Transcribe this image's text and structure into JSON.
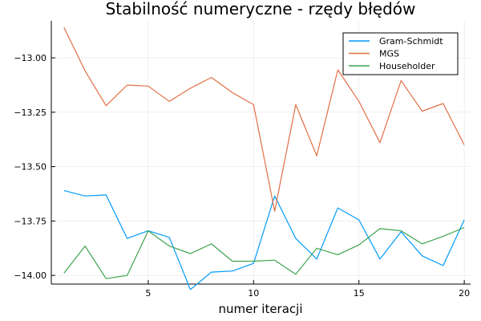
{
  "chart_data": {
    "type": "line",
    "title": "Stabilność numeryczne - rzędy błędów",
    "xlabel": "numer iteracji",
    "ylabel": "",
    "xlim": [
      0.4,
      20.3
    ],
    "ylim": [
      -14.04,
      -12.83
    ],
    "xticks": [
      5,
      10,
      15,
      20
    ],
    "xtick_labels": [
      "5",
      "10",
      "15",
      "20"
    ],
    "yticks": [
      -14.0,
      -13.75,
      -13.5,
      -13.25,
      -13.0
    ],
    "ytick_labels": [
      "−14.00",
      "−13.75",
      "−13.50",
      "−13.25",
      "−13.00"
    ],
    "grid": true,
    "legend_position": "top-right",
    "x": [
      1,
      2,
      3,
      4,
      5,
      6,
      7,
      8,
      9,
      10,
      11,
      12,
      13,
      14,
      15,
      16,
      17,
      18,
      19,
      20
    ],
    "series": [
      {
        "name": "Gram-Schmidt",
        "color": "#009af9",
        "values": [
          -13.61,
          -13.635,
          -13.63,
          -13.83,
          -13.795,
          -13.825,
          -14.065,
          -13.985,
          -13.98,
          -13.945,
          -13.635,
          -13.83,
          -13.925,
          -13.69,
          -13.745,
          -13.925,
          -13.8,
          -13.91,
          -13.955,
          -13.745
        ]
      },
      {
        "name": "MGS",
        "color": "#e26f46",
        "values": [
          -12.86,
          -13.06,
          -13.22,
          -13.125,
          -13.13,
          -13.2,
          -13.14,
          -13.09,
          -13.16,
          -13.215,
          -13.705,
          -13.215,
          -13.45,
          -13.055,
          -13.2,
          -13.39,
          -13.105,
          -13.245,
          -13.21,
          -13.4
        ]
      },
      {
        "name": "Householder",
        "color": "#3da44d",
        "values": [
          -13.99,
          -13.865,
          -14.015,
          -14.0,
          -13.795,
          -13.865,
          -13.9,
          -13.855,
          -13.935,
          -13.935,
          -13.93,
          -13.995,
          -13.875,
          -13.905,
          -13.86,
          -13.785,
          -13.795,
          -13.855,
          -13.82,
          -13.78
        ]
      }
    ]
  }
}
